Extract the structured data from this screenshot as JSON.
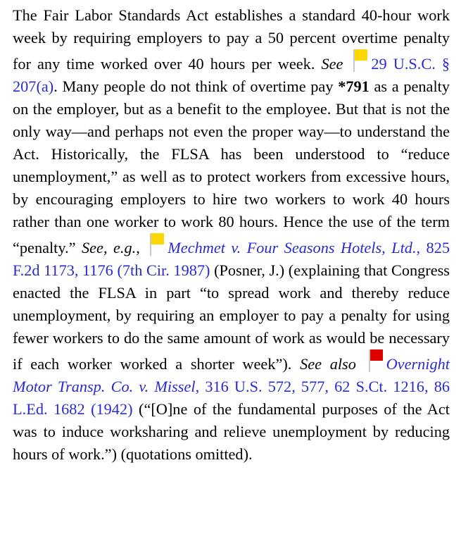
{
  "paragraph": {
    "segments": [
      "The Fair Labor Standards Act establishes a standard 40-hour work week by requiring employers to pay a 50 percent overtime penalty for any time worked over 40 hours per week. ",
      "See ",
      "29 U.S.C. § 207(a)",
      ". Many people do not think of overtime pay ",
      "*791",
      " as a penalty on the employer, but as a benefit to the employee. But that is not the only way—and perhaps not even the proper way—to understand the Act. Historically, the FLSA has been understood to “reduce unemployment,” as well as to protect workers from excessive hours, by encouraging employers to hire two workers to work 40 hours rather than one worker to work 80 hours. Hence the use of the term “penalty.” ",
      "See",
      ", ",
      "e.g.",
      ", ",
      "Mechmet v. Four Seasons Hotels, Ltd.",
      ", 825 F.2d 1173, 1176 (7th Cir. 1987)",
      " (Posner, J.) (explaining that Congress enacted the FLSA in part “to spread work and thereby reduce unemployment, by requiring an employer to pay a penalty for using fewer workers to do the same amount of work as would be necessary if each worker worked a shorter week”). ",
      "See also ",
      "Overnight Motor Transp. Co. v. Missel",
      ", 316 U.S. 572, 577, 62 S.Ct. 1216, 86 L.Ed. 1682 (1942)",
      " (“[O]ne of the fundamental purposes of the Act was to induce worksharing and relieve unemployment by reducing hours of work.”) (quotations omitted)."
    ]
  }
}
